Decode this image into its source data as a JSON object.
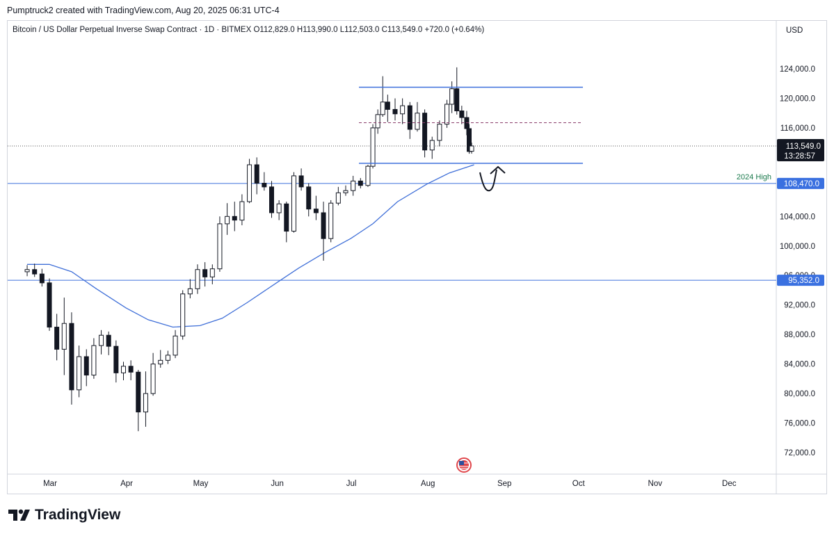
{
  "header": {
    "published_by": "Pumptruck2 created with TradingView.com, Aug 20, 2025 06:31 UTC-4"
  },
  "symbol": {
    "name": "Bitcoin / US Dollar Perpetual Inverse Swap Contract",
    "interval": "1D",
    "exchange": "BITMEX",
    "open": "O112,829.0",
    "high": "H113,990.0",
    "low": "L112,503.0",
    "close": "C113,549.0",
    "change": "+720.0 (+0.64%)"
  },
  "currency": "USD",
  "footer": {
    "brand": "TradingView"
  },
  "colors": {
    "up": "#131722",
    "down": "#131722",
    "level_line": "#3f70dc",
    "ma_line": "#3f6fd8",
    "dashed_line": "#8a3c6b",
    "price_tag": "#131722",
    "level_tag": "#3a70e0",
    "annotation_text": "#1b7a4d"
  },
  "chart_data": {
    "type": "candlestick",
    "y_axis": {
      "ticks": [
        "124,000.0",
        "120,000.0",
        "116,000.0",
        "104,000.0",
        "100,000.0",
        "96,000.0",
        "92,000.0",
        "88,000.0",
        "84,000.0",
        "80,000.0",
        "76,000.0",
        "72,000.0"
      ],
      "tick_values": [
        124000,
        120000,
        116000,
        104000,
        100000,
        96000,
        92000,
        88000,
        84000,
        80000,
        76000,
        72000
      ],
      "range": [
        70000,
        128000
      ]
    },
    "x_axis": {
      "ticks": [
        "Mar",
        "Apr",
        "May",
        "Jun",
        "Jul",
        "Aug",
        "Sep",
        "Oct",
        "Nov",
        "Dec"
      ]
    },
    "current_price": {
      "value": 113549,
      "label": "113,549.0",
      "countdown": "13:28:57"
    },
    "levels": [
      {
        "value": 108470,
        "label": "108,470.0",
        "annotation": "2024 High"
      },
      {
        "value": 95352,
        "label": "95,352.0"
      }
    ],
    "range_box": {
      "upper": 121500,
      "lower": 111200,
      "mid": 116700
    },
    "moving_average": [
      [
        "2025-02-20",
        97500
      ],
      [
        "2025-03-01",
        97500
      ],
      [
        "2025-03-10",
        96500
      ],
      [
        "2025-03-20",
        94200
      ],
      [
        "2025-04-01",
        91600
      ],
      [
        "2025-04-10",
        90000
      ],
      [
        "2025-04-20",
        89000
      ],
      [
        "2025-05-01",
        89200
      ],
      [
        "2025-05-10",
        90200
      ],
      [
        "2025-05-20",
        92300
      ],
      [
        "2025-06-01",
        95000
      ],
      [
        "2025-06-10",
        97000
      ],
      [
        "2025-06-20",
        99000
      ],
      [
        "2025-07-01",
        101000
      ],
      [
        "2025-07-10",
        103000
      ],
      [
        "2025-07-20",
        106000
      ],
      [
        "2025-08-01",
        108400
      ],
      [
        "2025-08-10",
        109900
      ],
      [
        "2025-08-20",
        111000
      ]
    ],
    "candles": [
      [
        "2025-02-20",
        96500,
        97400,
        95900,
        96800
      ],
      [
        "2025-02-23",
        96800,
        97600,
        95800,
        96200
      ],
      [
        "2025-02-26",
        96200,
        96900,
        94500,
        95000
      ],
      [
        "2025-03-01",
        95000,
        95600,
        88500,
        89000
      ],
      [
        "2025-03-04",
        89000,
        90800,
        84500,
        86000
      ],
      [
        "2025-03-07",
        86000,
        93000,
        82500,
        89500
      ],
      [
        "2025-03-10",
        89500,
        91000,
        78500,
        80500
      ],
      [
        "2025-03-13",
        80500,
        86500,
        79500,
        85000
      ],
      [
        "2025-03-16",
        85000,
        86000,
        81000,
        82500
      ],
      [
        "2025-03-19",
        82500,
        87500,
        82000,
        86500
      ],
      [
        "2025-03-22",
        86500,
        88600,
        85300,
        87900
      ],
      [
        "2025-03-25",
        87900,
        88400,
        85200,
        86400
      ],
      [
        "2025-03-28",
        86400,
        87200,
        81500,
        82800
      ],
      [
        "2025-03-31",
        82800,
        84300,
        81800,
        83700
      ],
      [
        "2025-04-03",
        83700,
        84500,
        81800,
        82900
      ],
      [
        "2025-04-06",
        82900,
        83200,
        74900,
        77500
      ],
      [
        "2025-04-09",
        77500,
        83000,
        75500,
        80000
      ],
      [
        "2025-04-12",
        80000,
        85500,
        79700,
        84000
      ],
      [
        "2025-04-15",
        84000,
        85900,
        83500,
        84500
      ],
      [
        "2025-04-18",
        84500,
        85800,
        84000,
        85200
      ],
      [
        "2025-04-21",
        85200,
        88600,
        84800,
        87800
      ],
      [
        "2025-04-24",
        87800,
        94000,
        87300,
        93500
      ],
      [
        "2025-04-27",
        93500,
        95500,
        92900,
        94200
      ],
      [
        "2025-04-30",
        94200,
        97500,
        93500,
        96800
      ],
      [
        "2025-05-03",
        96800,
        97800,
        94500,
        95800
      ],
      [
        "2025-05-06",
        95800,
        97500,
        94800,
        96900
      ],
      [
        "2025-05-09",
        96900,
        104000,
        96500,
        103000
      ],
      [
        "2025-05-12",
        103000,
        105800,
        101500,
        104000
      ],
      [
        "2025-05-15",
        104000,
        106000,
        102000,
        103500
      ],
      [
        "2025-05-18",
        103500,
        107000,
        102800,
        106000
      ],
      [
        "2025-05-21",
        106000,
        111800,
        105800,
        111000
      ],
      [
        "2025-05-24",
        111000,
        112000,
        107000,
        108500
      ],
      [
        "2025-05-27",
        108500,
        110000,
        107500,
        108000
      ],
      [
        "2025-05-30",
        108000,
        108800,
        103800,
        104500
      ],
      [
        "2025-06-02",
        104500,
        106200,
        103500,
        105700
      ],
      [
        "2025-06-05",
        105700,
        106000,
        100500,
        102000
      ],
      [
        "2025-06-08",
        102000,
        110000,
        101800,
        109500
      ],
      [
        "2025-06-11",
        109500,
        110500,
        107500,
        108000
      ],
      [
        "2025-06-14",
        108000,
        108500,
        104000,
        105000
      ],
      [
        "2025-06-17",
        105000,
        106800,
        103500,
        104500
      ],
      [
        "2025-06-20",
        104500,
        106000,
        98000,
        101000
      ],
      [
        "2025-06-23",
        101000,
        106200,
        100500,
        105800
      ],
      [
        "2025-06-26",
        105800,
        108000,
        105500,
        107200
      ],
      [
        "2025-06-29",
        107200,
        108200,
        106800,
        107500
      ],
      [
        "2025-07-02",
        107500,
        109500,
        106800,
        108800
      ],
      [
        "2025-07-05",
        108800,
        109200,
        107800,
        108200
      ],
      [
        "2025-07-08",
        108200,
        111000,
        108000,
        110800
      ],
      [
        "2025-07-10",
        110800,
        116500,
        110500,
        116000
      ],
      [
        "2025-07-12",
        116000,
        118500,
        115200,
        117800
      ],
      [
        "2025-07-14",
        117800,
        123000,
        117500,
        119500
      ],
      [
        "2025-07-16",
        119500,
        120500,
        116800,
        118500
      ],
      [
        "2025-07-19",
        118500,
        120000,
        117000,
        117900
      ],
      [
        "2025-07-22",
        117900,
        120000,
        116500,
        119000
      ],
      [
        "2025-07-25",
        119000,
        119500,
        114500,
        115800
      ],
      [
        "2025-07-28",
        115800,
        119500,
        115500,
        118000
      ],
      [
        "2025-07-31",
        118000,
        118500,
        112000,
        113000
      ],
      [
        "2025-08-03",
        113000,
        114800,
        111800,
        114300
      ],
      [
        "2025-08-06",
        114300,
        117000,
        113500,
        116500
      ],
      [
        "2025-08-09",
        116500,
        119800,
        116000,
        119200
      ],
      [
        "2025-08-11",
        119200,
        122300,
        118000,
        121300
      ],
      [
        "2025-08-13",
        121300,
        124200,
        117800,
        118300
      ],
      [
        "2025-08-15",
        118300,
        119000,
        116500,
        117400
      ],
      [
        "2025-08-17",
        117400,
        118300,
        115000,
        115900
      ],
      [
        "2025-08-18",
        115900,
        116500,
        112500,
        112800
      ],
      [
        "2025-08-19",
        112829,
        113990,
        112503,
        113549
      ]
    ]
  }
}
